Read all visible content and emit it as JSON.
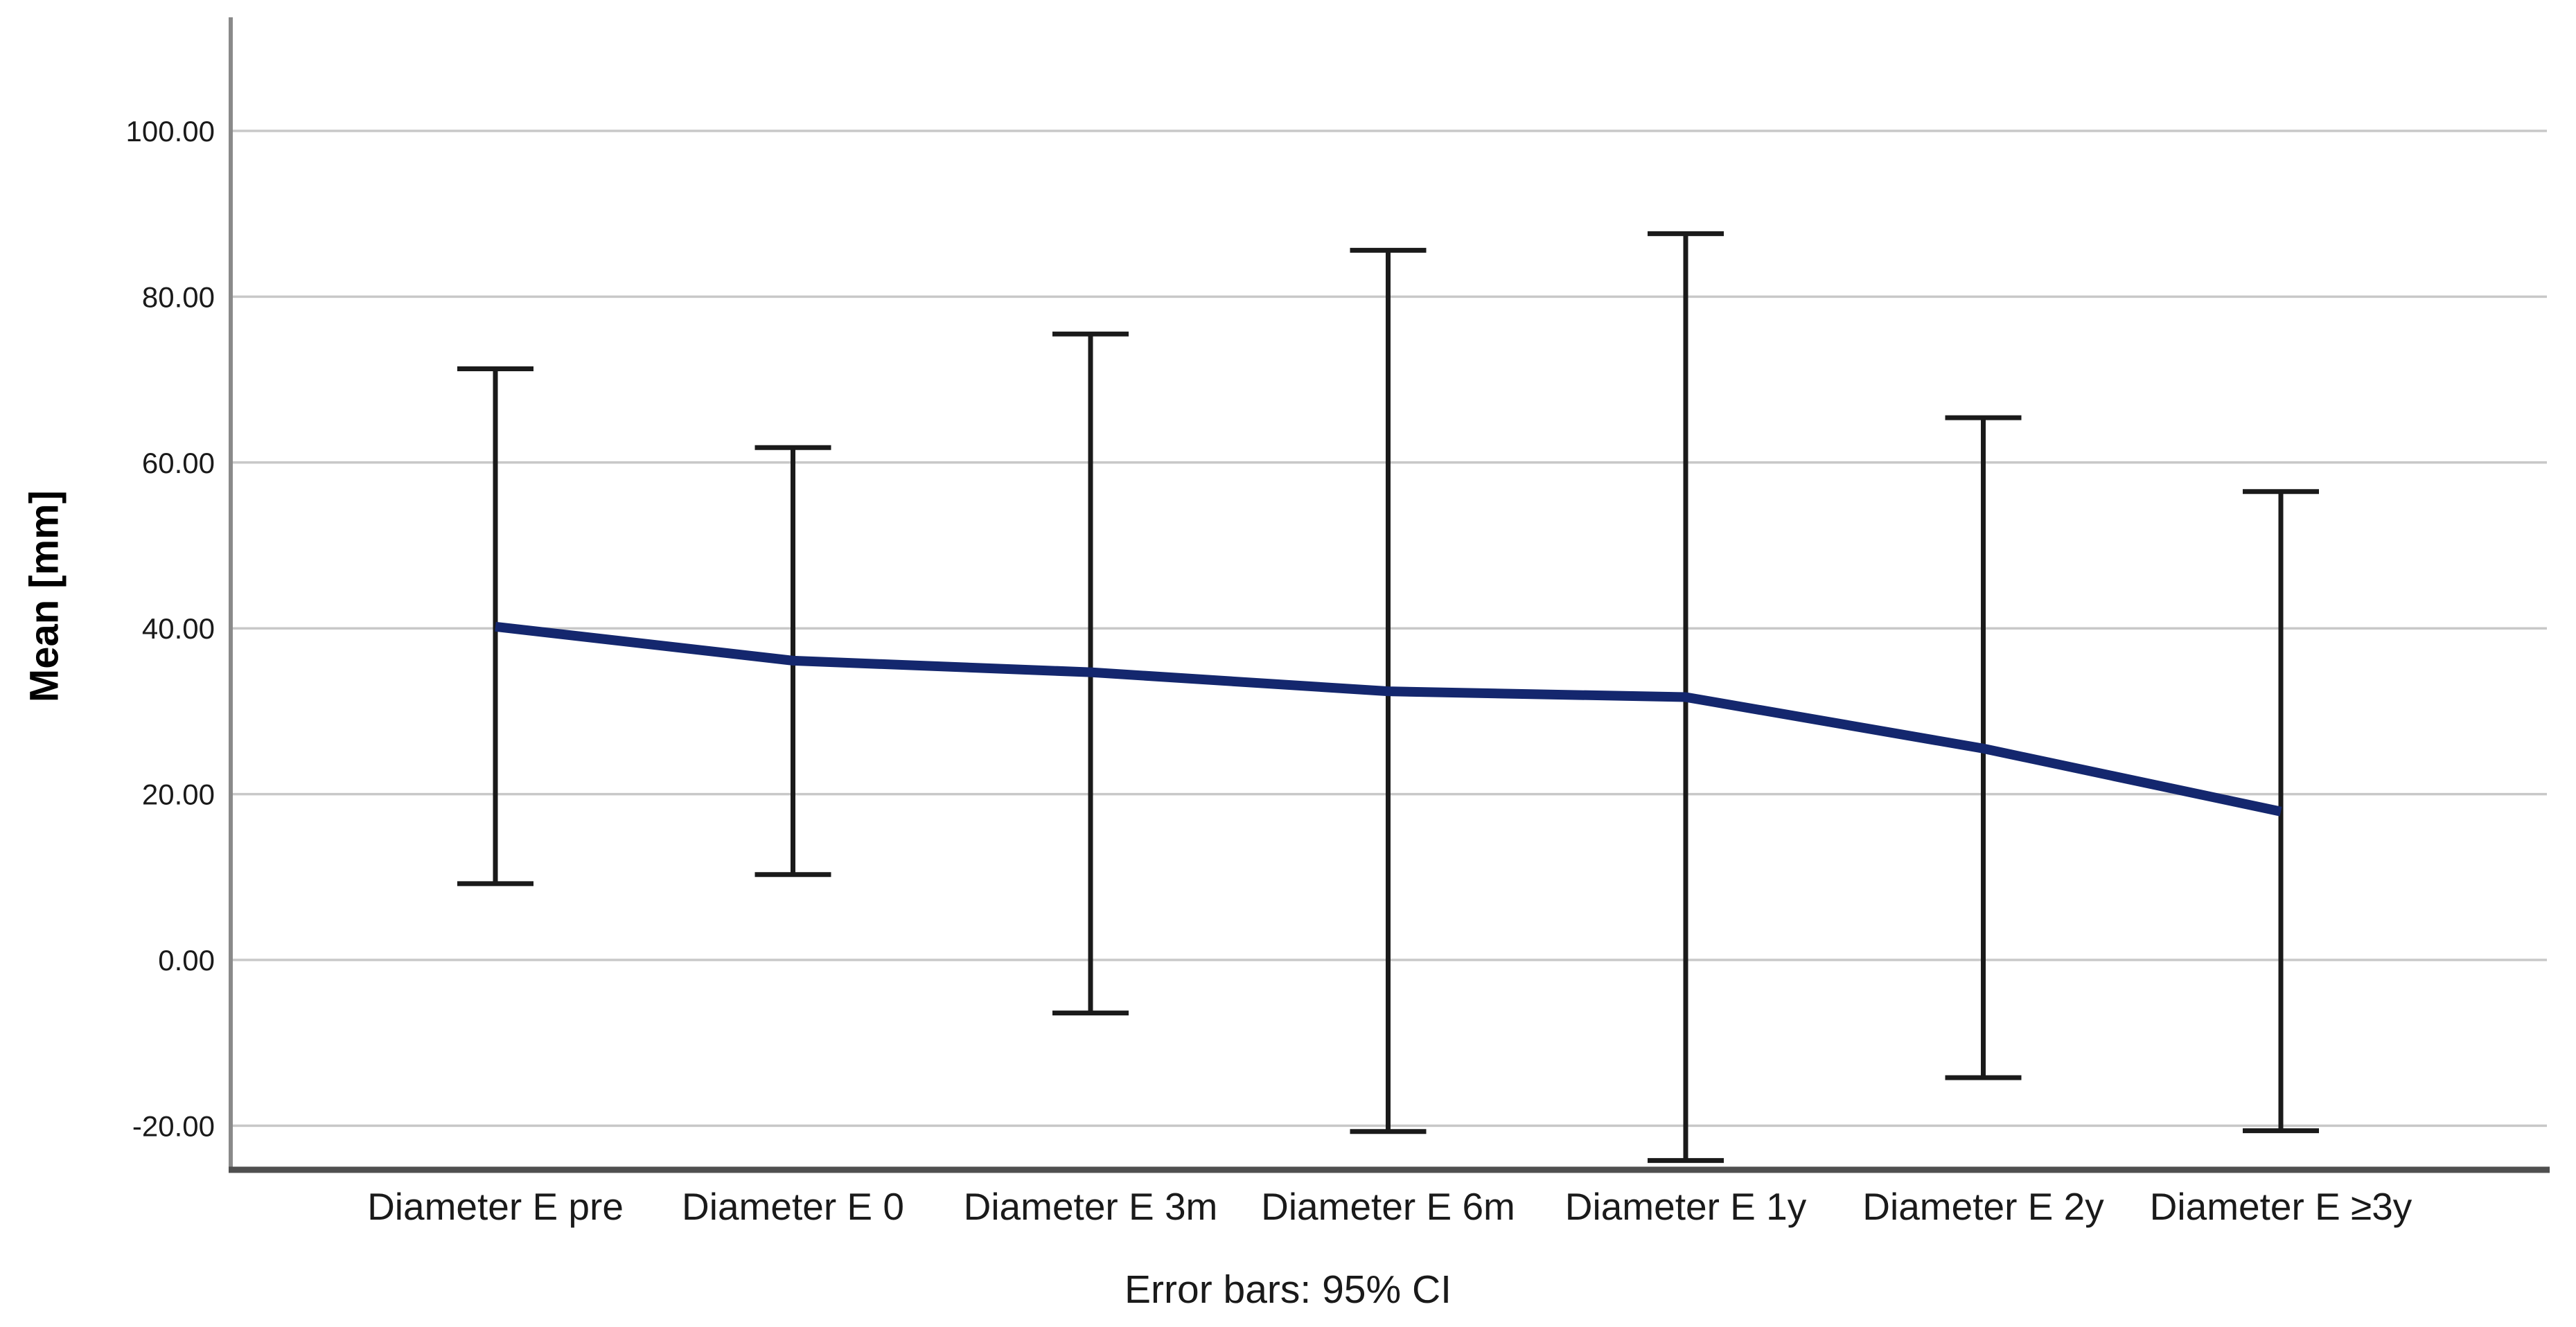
{
  "figure": {
    "background": "#ffffff"
  },
  "chart_data": {
    "type": "line",
    "title": "",
    "xlabel": "",
    "ylabel": "Mean [mm]",
    "caption": "Error bars: 95% CI",
    "categories": [
      "Diameter E pre",
      "Diameter E 0",
      "Diameter E 3m",
      "Diameter E 6m",
      "Diameter E 1y",
      "Diameter E 2y",
      "Diameter E ≥3y"
    ],
    "series": [
      {
        "name": "Mean [mm]",
        "values": [
          40.2,
          36.1,
          34.7,
          32.4,
          31.7,
          25.5,
          17.9
        ]
      }
    ],
    "error_bars": {
      "label": "95% CI",
      "upper": [
        71.3,
        61.8,
        75.5,
        85.6,
        87.6,
        65.4,
        56.5
      ],
      "lower": [
        9.2,
        10.3,
        -6.4,
        -20.7,
        -24.2,
        -14.2,
        -20.6
      ]
    },
    "yticks": {
      "values": [
        100,
        80,
        60,
        40,
        20,
        0,
        -20
      ],
      "labels": [
        "100.00",
        "80.00",
        "60.00",
        "40.00",
        "20.00",
        "0.00",
        "-20.00"
      ]
    },
    "ylim": [
      -25.3,
      113.7
    ],
    "grid": "horizontal-only",
    "legend": "none",
    "colors": {
      "line": "#14276e",
      "error_bar": "#1a1a1a",
      "gridline": "#c8c8c8",
      "y_axis_line": "#8a8a8a",
      "x_axis_line": "#4f4f4f",
      "tick_text": "#1a1a1a",
      "category_text": "#1a1a1a"
    }
  }
}
